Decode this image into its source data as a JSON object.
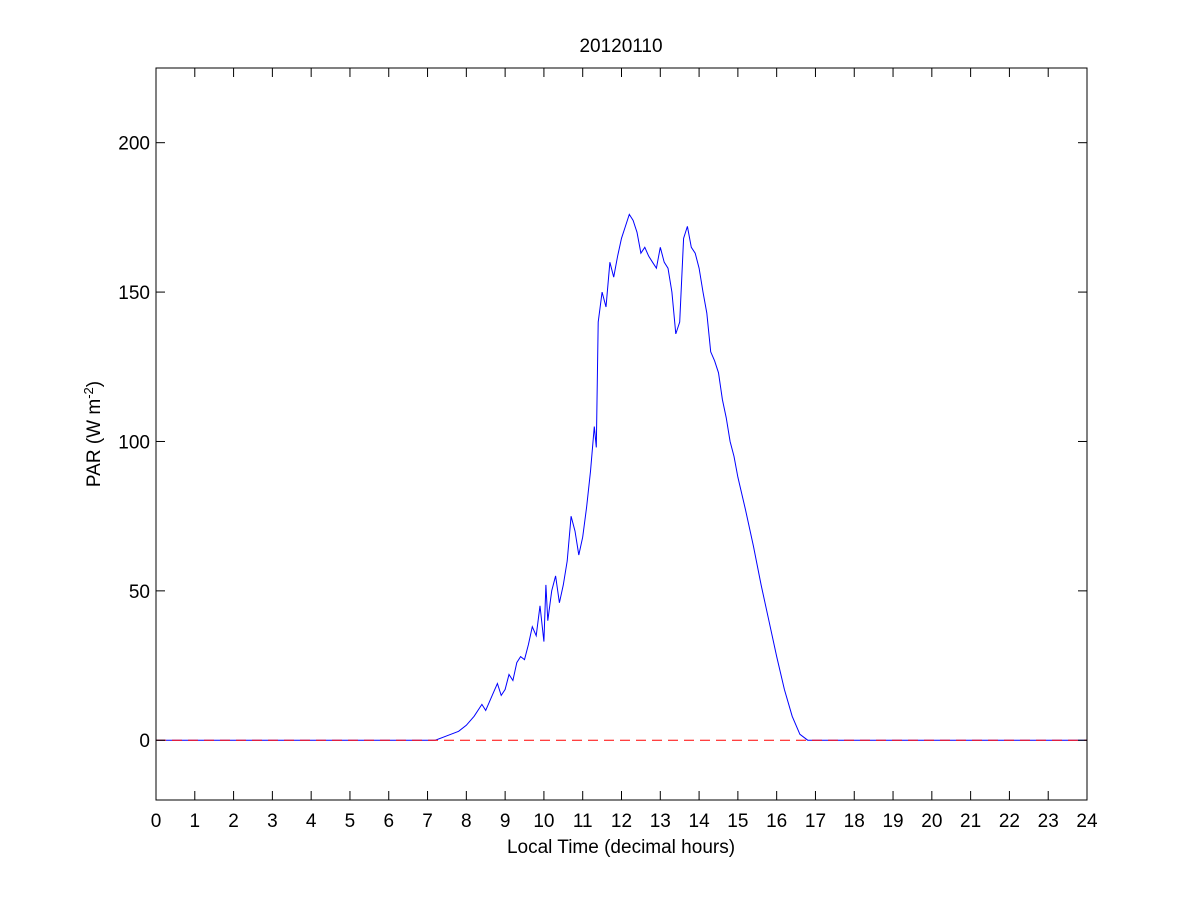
{
  "chart_data": {
    "type": "line",
    "title": "20120110",
    "xlabel": "Local Time (decimal hours)",
    "ylabel_main": "PAR (W m",
    "ylabel_sup": "-2",
    "ylabel_tail": ")",
    "xlim": [
      0,
      24
    ],
    "ylim": [
      -20,
      225
    ],
    "xticks": [
      0,
      1,
      2,
      3,
      4,
      5,
      6,
      7,
      8,
      9,
      10,
      11,
      12,
      13,
      14,
      15,
      16,
      17,
      18,
      19,
      20,
      21,
      22,
      23,
      24
    ],
    "yticks": [
      0,
      50,
      100,
      150,
      200
    ],
    "grid": false,
    "legend": "none",
    "series": [
      {
        "color": "#0000ff",
        "style": "solid",
        "x": [
          0,
          7.2,
          7.5,
          7.8,
          8.0,
          8.2,
          8.4,
          8.5,
          8.6,
          8.7,
          8.8,
          8.9,
          9.0,
          9.1,
          9.2,
          9.3,
          9.4,
          9.5,
          9.6,
          9.7,
          9.8,
          9.9,
          10.0,
          10.05,
          10.1,
          10.2,
          10.3,
          10.4,
          10.5,
          10.6,
          10.7,
          10.8,
          10.9,
          11.0,
          11.1,
          11.2,
          11.3,
          11.35,
          11.4,
          11.5,
          11.6,
          11.7,
          11.8,
          11.9,
          12.0,
          12.1,
          12.2,
          12.3,
          12.4,
          12.5,
          12.6,
          12.7,
          12.8,
          12.9,
          13.0,
          13.1,
          13.2,
          13.3,
          13.4,
          13.5,
          13.6,
          13.7,
          13.8,
          13.9,
          14.0,
          14.1,
          14.2,
          14.3,
          14.4,
          14.5,
          14.6,
          14.7,
          14.8,
          14.9,
          15.0,
          15.2,
          15.4,
          15.6,
          15.8,
          16.0,
          16.2,
          16.4,
          16.6,
          16.8,
          17.0,
          17.2,
          17.4,
          17.6,
          18.0,
          24
        ],
        "y": [
          0,
          0,
          1.5,
          3,
          5,
          8,
          12,
          10,
          13,
          16,
          19,
          15,
          17,
          22,
          20,
          26,
          28,
          27,
          32,
          38,
          35,
          45,
          33,
          52,
          40,
          50,
          55,
          46,
          52,
          60,
          75,
          70,
          62,
          68,
          78,
          90,
          105,
          98,
          140,
          150,
          145,
          160,
          155,
          162,
          168,
          172,
          176,
          174,
          170,
          163,
          165,
          162,
          160,
          158,
          165,
          160,
          158,
          150,
          136,
          140,
          168,
          172,
          165,
          163,
          158,
          150,
          143,
          130,
          127,
          123,
          114,
          108,
          100,
          95,
          88,
          77,
          65,
          52,
          40,
          28,
          17,
          8,
          2,
          0,
          0,
          0,
          0,
          0,
          0,
          0
        ]
      },
      {
        "color": "#ff0000",
        "style": "dashed",
        "x": [
          0,
          24
        ],
        "y": [
          0,
          0
        ]
      }
    ]
  }
}
